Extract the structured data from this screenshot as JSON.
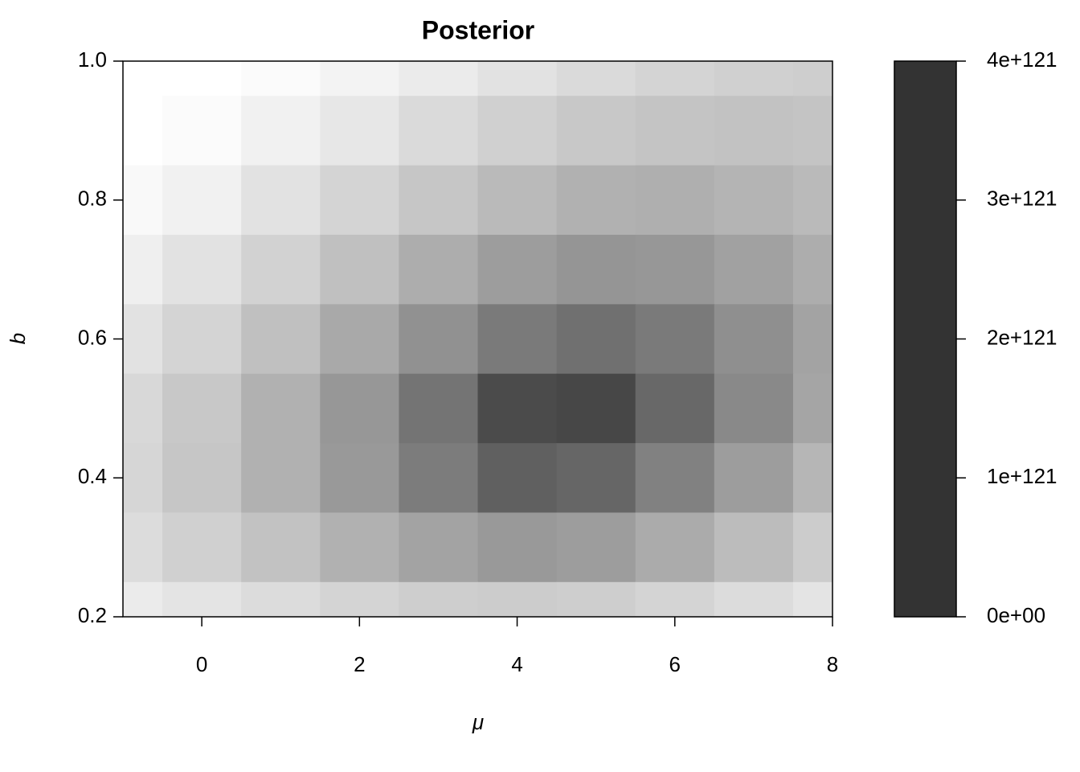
{
  "chart_data": {
    "type": "contour",
    "title": "Posterior",
    "x_label": "μ",
    "y_label": "b",
    "x": [
      -1,
      0,
      1,
      2,
      3,
      4,
      5,
      6,
      7,
      8
    ],
    "y": [
      1.0,
      0.9,
      0.8,
      0.7,
      0.6,
      0.5,
      0.4,
      0.3,
      0.2
    ],
    "z": [
      [
        0,
        0,
        8e+119,
        2.4e+120,
        4e+120,
        5.6e+120,
        7.2e+120,
        8.4e+120,
        9.2e+120,
        9.6e+120
      ],
      [
        0,
        8e+119,
        2.8e+120,
        4.8e+120,
        7.2e+120,
        9.2e+120,
        1.08e+121,
        1.16e+121,
        1.2e+121,
        1.16e+121
      ],
      [
        1.2e+120,
        2.8e+120,
        5.6e+120,
        8.4e+120,
        1.12e+121,
        1.36e+121,
        1.52e+121,
        1.56e+121,
        1.48e+121,
        1.36e+121
      ],
      [
        3.2e+120,
        5.6e+120,
        8.8e+120,
        1.24e+121,
        1.6e+121,
        1.92e+121,
        2.08e+121,
        2.04e+121,
        1.84e+121,
        1.6e+121
      ],
      [
        5.6e+120,
        8.4e+120,
        1.24e+121,
        1.68e+121,
        2.16e+121,
        2.6e+121,
        2.8e+121,
        2.6e+121,
        2.2e+121,
        1.8e+121
      ],
      [
        7.6e+120,
        1.08e+121,
        1.52e+121,
        2.04e+121,
        2.72e+121,
        3.52e+121,
        3.6e+121,
        2.96e+121,
        2.32e+121,
        1.76e+121
      ],
      [
        8e+120,
        1.12e+121,
        1.52e+121,
        2e+121,
        2.56e+121,
        3.12e+121,
        3e+121,
        2.48e+121,
        1.92e+121,
        1.44e+121
      ],
      [
        6.8e+120,
        9.2e+120,
        1.2e+121,
        1.52e+121,
        1.8e+121,
        2e+121,
        1.92e+121,
        1.64e+121,
        1.32e+121,
        1e+121
      ],
      [
        4e+120,
        5.2e+120,
        6.8e+120,
        8.4e+120,
        9.6e+120,
        1e+121,
        9.6e+120,
        8.4e+120,
        6.8e+120,
        5.2e+120
      ]
    ],
    "xlim": [
      -1,
      8
    ],
    "xticks": [
      0,
      2,
      4,
      6,
      8
    ],
    "ylim": [
      0.2,
      1.0
    ],
    "yticks": [
      {
        "value": 0.2,
        "label": "0.2"
      },
      {
        "value": 0.4,
        "label": "0.4"
      },
      {
        "value": 0.6,
        "label": "0.6"
      },
      {
        "value": 0.8,
        "label": "0.8"
      },
      {
        "value": 1.0,
        "label": "1.0"
      }
    ],
    "zlim": [
      0,
      4e+121
    ],
    "zticks": [
      {
        "value": 0,
        "label": "0e+00"
      },
      {
        "value": 1e+121,
        "label": "1e+121"
      },
      {
        "value": 2e+121,
        "label": "2e+121"
      },
      {
        "value": 3e+121,
        "label": "3e+121"
      },
      {
        "value": 4e+121,
        "label": "4e+121"
      }
    ],
    "low_color": "#ffffff",
    "high_color": "#333333",
    "colorbar_color": "#333333"
  }
}
